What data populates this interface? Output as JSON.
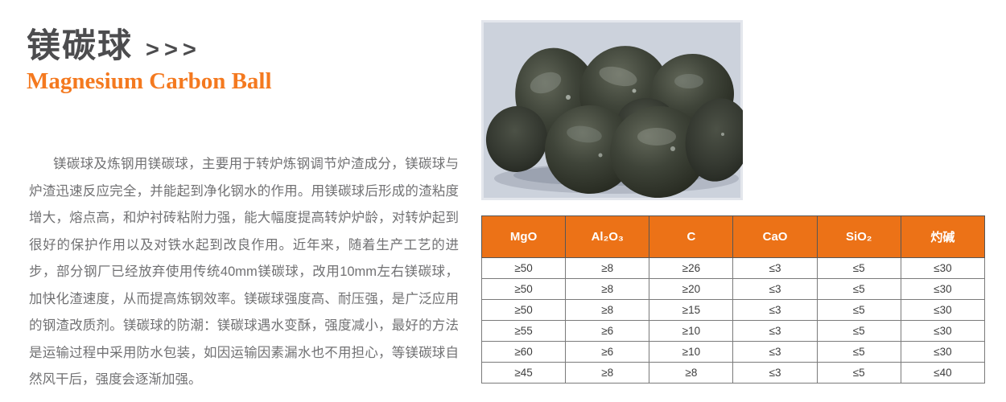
{
  "header": {
    "title_zh": "镁碳球",
    "title_arrows": ">>>",
    "title_en": "Magnesium Carbon Ball"
  },
  "description": "镁碳球及炼钢用镁碳球，主要用于转炉炼钢调节炉渣成分，镁碳球与炉渣迅速反应完全，并能起到净化钢水的作用。用镁碳球后形成的渣粘度增大，熔点高，和炉衬砖粘附力强，能大幅度提高转炉炉龄，对转炉起到很好的保护作用以及对铁水起到改良作用。近年来，随着生产工艺的进步，部分钢厂已经放弃使用传统40mm镁碳球，改用10mm左右镁碳球，加快化渣速度，从而提高炼钢效率。镁碳球强度高、耐压强，是广泛应用的钢渣改质剂。镁碳球的防潮：镁碳球遇水变酥，强度减小，最好的方法是运输过程中采用防水包装，如因运输因素漏水也不用担心，等镁碳球自然风干后，强度会逐渐加强。",
  "product_photo": {
    "label": "magnesium carbon balls photo"
  },
  "spec_table": {
    "headers": [
      "MgO",
      "Al₂O₃",
      "C",
      "CaO",
      "SiO₂",
      "灼碱"
    ],
    "rows": [
      [
        "≥50",
        "≥8",
        "≥26",
        "≤3",
        "≤5",
        "≤30"
      ],
      [
        "≥50",
        "≥8",
        "≥20",
        "≤3",
        "≤5",
        "≤30"
      ],
      [
        "≥50",
        "≥8",
        "≥15",
        "≤3",
        "≤5",
        "≤30"
      ],
      [
        "≥55",
        "≥6",
        "≥10",
        "≤3",
        "≤5",
        "≤30"
      ],
      [
        "≥60",
        "≥6",
        "≥10",
        "≤3",
        "≤5",
        "≤30"
      ],
      [
        "≥45",
        "≥8",
        "≥8",
        "≤3",
        "≤5",
        "≤40"
      ]
    ]
  },
  "colors": {
    "table_header_orange": "#ec7217",
    "subtitle_orange": "#f4791f",
    "title_gray": "#4c4c4e",
    "body_text_gray": "#717173",
    "photo_background": "#ccd2dc"
  }
}
